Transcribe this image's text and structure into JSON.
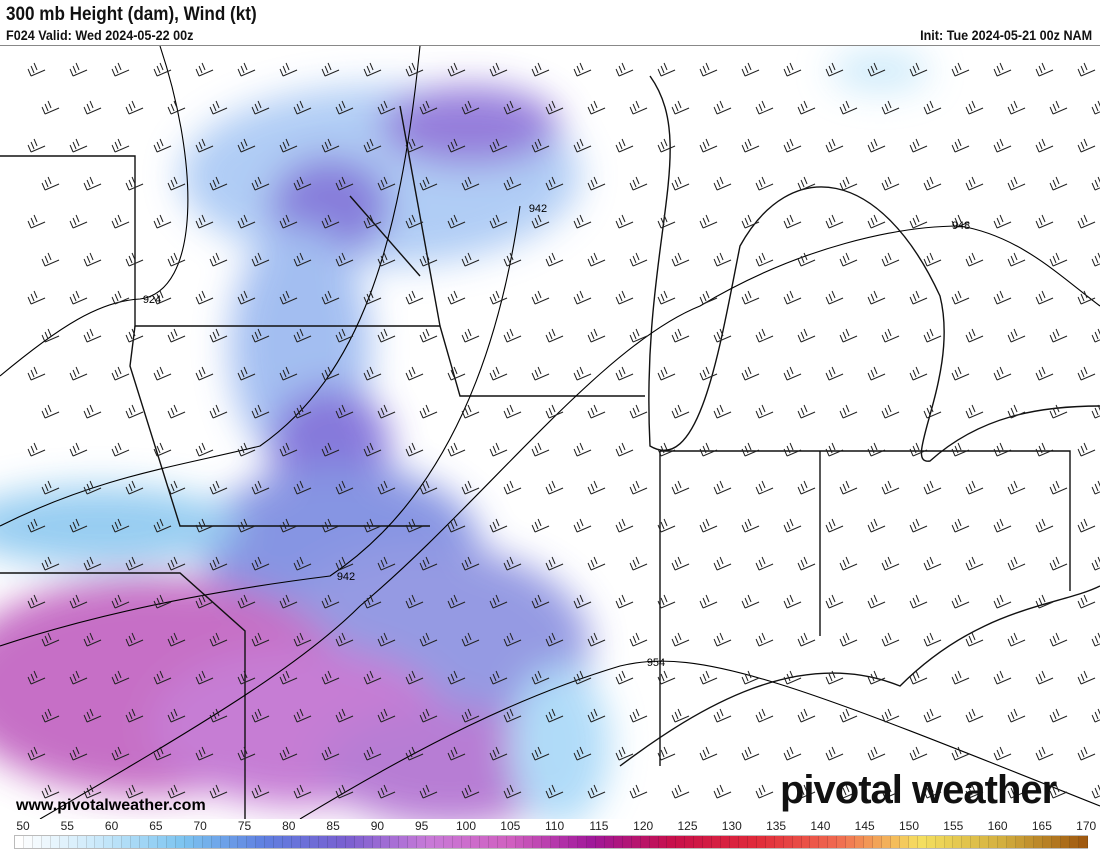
{
  "header": {
    "title": "300 mb Height (dam), Wind (kt)",
    "valid": "F024 Valid: Wed 2024-05-22 00z",
    "init": "Init: Tue 2024-05-21 00z NAM"
  },
  "map": {
    "contour_labels": [
      "924",
      "942",
      "948",
      "942",
      "954"
    ]
  },
  "footer": {
    "url": "www.pivotalweather.com",
    "logo": "pivotal weather"
  },
  "colorbar": {
    "labels": [
      "50",
      "55",
      "60",
      "65",
      "70",
      "75",
      "80",
      "85",
      "90",
      "95",
      "100",
      "105",
      "110",
      "115",
      "120",
      "125",
      "130",
      "135",
      "140",
      "145",
      "150",
      "155",
      "160",
      "165",
      "170"
    ],
    "stops": [
      "#ffffff",
      "#c8e8fa",
      "#7cc4f0",
      "#5f7fe0",
      "#7a5fd0",
      "#c87ad8",
      "#d060c0",
      "#a0189a",
      "#c8104a",
      "#e02a3a",
      "#f06a50",
      "#f5e060",
      "#d4b040",
      "#a05a10"
    ]
  }
}
